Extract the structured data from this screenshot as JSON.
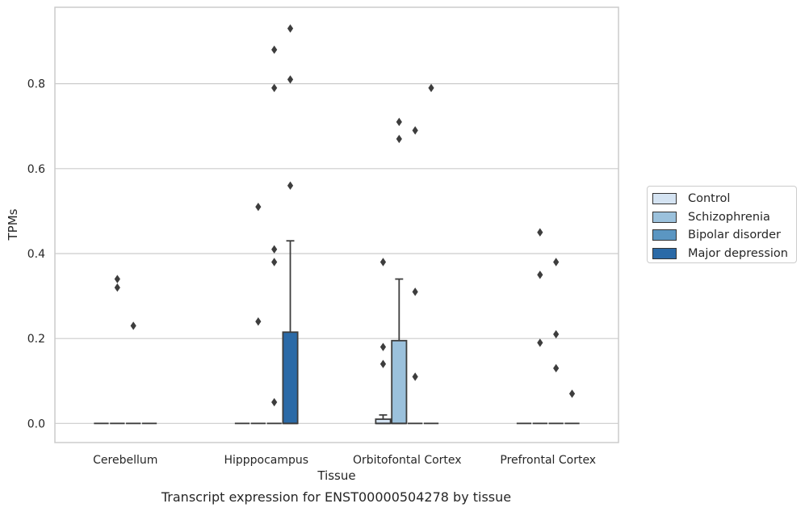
{
  "chart_data": {
    "type": "boxplot",
    "categories": [
      "Cerebellum",
      "Hipppocampus",
      "Orbitofontal Cortex",
      "Prefrontal Cortex"
    ],
    "xlabel": "Tissue",
    "ylabel": "TPMs",
    "yticks": [
      "0.0",
      "0.2",
      "0.4",
      "0.6",
      "0.8"
    ],
    "ylim": [
      -0.045,
      0.98
    ],
    "grid": "horizontal",
    "legend_position": "right",
    "series": [
      {
        "name": "Control",
        "color": "#d4e3f2",
        "boxes": [
          {
            "q1": 0,
            "median": 0,
            "q3": 0,
            "whisker_low": 0,
            "whisker_high": 0,
            "outliers": []
          },
          {
            "q1": 0,
            "median": 0,
            "q3": 0,
            "whisker_low": 0,
            "whisker_high": 0,
            "outliers": []
          },
          {
            "q1": 0,
            "median": 0,
            "q3": 0.01,
            "whisker_low": 0,
            "whisker_high": 0.02,
            "outliers": [
              0.38,
              0.18,
              0.14
            ]
          },
          {
            "q1": 0,
            "median": 0,
            "q3": 0,
            "whisker_low": 0,
            "whisker_high": 0,
            "outliers": []
          }
        ]
      },
      {
        "name": "Schizophrenia",
        "color": "#9bc1dc",
        "boxes": [
          {
            "q1": 0,
            "median": 0,
            "q3": 0,
            "whisker_low": 0,
            "whisker_high": 0,
            "outliers": [
              0.34,
              0.32
            ]
          },
          {
            "q1": 0,
            "median": 0,
            "q3": 0,
            "whisker_low": 0,
            "whisker_high": 0,
            "outliers": [
              0.51,
              0.24
            ]
          },
          {
            "q1": 0,
            "median": 0,
            "q3": 0.195,
            "whisker_low": 0,
            "whisker_high": 0.34,
            "outliers": [
              0.71,
              0.67
            ]
          },
          {
            "q1": 0,
            "median": 0,
            "q3": 0,
            "whisker_low": 0,
            "whisker_high": 0,
            "outliers": [
              0.45,
              0.35,
              0.19
            ]
          }
        ]
      },
      {
        "name": "Bipolar disorder",
        "color": "#5b96c2",
        "boxes": [
          {
            "q1": 0,
            "median": 0,
            "q3": 0,
            "whisker_low": 0,
            "whisker_high": 0,
            "outliers": [
              0.23
            ]
          },
          {
            "q1": 0,
            "median": 0,
            "q3": 0,
            "whisker_low": 0,
            "whisker_high": 0,
            "outliers": [
              0.88,
              0.79,
              0.41,
              0.38,
              0.05
            ]
          },
          {
            "q1": 0,
            "median": 0,
            "q3": 0,
            "whisker_low": 0,
            "whisker_high": 0,
            "outliers": [
              0.69,
              0.31,
              0.11
            ]
          },
          {
            "q1": 0,
            "median": 0,
            "q3": 0,
            "whisker_low": 0,
            "whisker_high": 0,
            "outliers": [
              0.38,
              0.21,
              0.13
            ]
          }
        ]
      },
      {
        "name": "Major depression",
        "color": "#2b6aa7",
        "boxes": [
          {
            "q1": 0,
            "median": 0,
            "q3": 0,
            "whisker_low": 0,
            "whisker_high": 0,
            "outliers": []
          },
          {
            "q1": 0,
            "median": 0,
            "q3": 0.215,
            "whisker_low": 0,
            "whisker_high": 0.43,
            "outliers": [
              0.93,
              0.81,
              0.56
            ]
          },
          {
            "q1": 0,
            "median": 0,
            "q3": 0,
            "whisker_low": 0,
            "whisker_high": 0,
            "outliers": [
              0.79
            ]
          },
          {
            "q1": 0,
            "median": 0,
            "q3": 0,
            "whisker_low": 0,
            "whisker_high": 0,
            "outliers": [
              0.07
            ]
          }
        ]
      }
    ],
    "caption": "Transcript expression for ENST00000504278 by tissue"
  }
}
